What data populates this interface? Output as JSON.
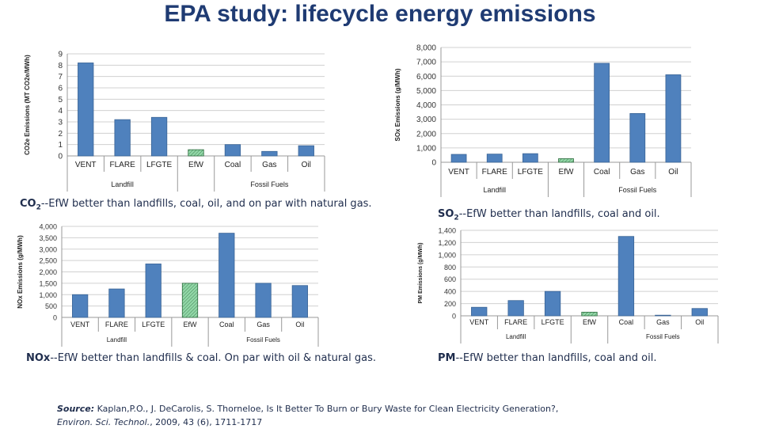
{
  "title": "EPA study: lifecycle energy emissions",
  "colors": {
    "bar": "#4f81bd",
    "efw_bar": "#92d8a8",
    "title": "#1f3b73",
    "caption": "#1f2d4d"
  },
  "captions": {
    "co2": {
      "lead": "CO",
      "sub": "2",
      "text": "--EfW better than landfills, coal, oil, and on par with natural gas."
    },
    "so2": {
      "lead": "SO",
      "sub": "2",
      "text": "--EfW better than landfills, coal and  oil."
    },
    "nox": {
      "lead": "NOx",
      "text": "--EfW better than landfills & coal. On par with oil & natural gas."
    },
    "pm": {
      "lead": "PM",
      "text": "--EfW better than landfills, coal and oil."
    }
  },
  "source": {
    "label": "Source:",
    "text": " Kaplan,P.O., J. DeCarolis, S. Thorneloe, Is It Better To Burn or Bury Waste for Clean Electricity Generation?,",
    "journal": "Environ. Sci. Technol.",
    "details": ", 2009, 43 (6), 1711-1717"
  },
  "chart_data": [
    {
      "id": "co2",
      "type": "bar",
      "ylabel": "CO2e Emissions (MT CO2e/MWh)",
      "categories": [
        "VENT",
        "FLARE",
        "LFGTE",
        "EfW",
        "Coal",
        "Gas",
        "Oil"
      ],
      "groups": [
        {
          "label": "Landfill",
          "from": 0,
          "to": 2
        },
        {
          "label": "Fossil Fuels",
          "from": 4,
          "to": 6
        }
      ],
      "values": [
        8.2,
        3.2,
        3.4,
        0.55,
        1.0,
        0.4,
        0.9
      ],
      "highlight_index": 3,
      "ylim": [
        0,
        9
      ],
      "yticks": [
        0,
        1,
        2,
        3,
        4,
        5,
        6,
        7,
        8,
        9
      ],
      "ytick_labels": [
        "0",
        "1",
        "2",
        "3",
        "4",
        "5",
        "6",
        "7",
        "8",
        "9"
      ],
      "grid": true
    },
    {
      "id": "so2",
      "type": "bar",
      "ylabel": "SOx Emissions (g/MWh)",
      "categories": [
        "VENT",
        "FLARE",
        "LFGTE",
        "EfW",
        "Coal",
        "Gas",
        "Oil"
      ],
      "groups": [
        {
          "label": "Landfill",
          "from": 0,
          "to": 2
        },
        {
          "label": "Fossil Fuels",
          "from": 4,
          "to": 6
        }
      ],
      "values": [
        550,
        570,
        600,
        250,
        6900,
        3400,
        6100
      ],
      "highlight_index": 3,
      "ylim": [
        0,
        8000
      ],
      "yticks": [
        0,
        1000,
        2000,
        3000,
        4000,
        5000,
        6000,
        7000,
        8000
      ],
      "ytick_labels": [
        "0",
        "1,000",
        "2,000",
        "3,000",
        "4,000",
        "5,000",
        "6,000",
        "7,000",
        "8,000"
      ],
      "grid": true
    },
    {
      "id": "nox",
      "type": "bar",
      "ylabel": "NOx Emissions (g/MWh)",
      "categories": [
        "VENT",
        "FLARE",
        "LFGTE",
        "EfW",
        "Coal",
        "Gas",
        "Oil"
      ],
      "groups": [
        {
          "label": "Landfill",
          "from": 0,
          "to": 2
        },
        {
          "label": "Fossil Fuels",
          "from": 4,
          "to": 6
        }
      ],
      "values": [
        1000,
        1250,
        2350,
        1500,
        3700,
        1500,
        1400
      ],
      "highlight_index": 3,
      "ylim": [
        0,
        4000
      ],
      "yticks": [
        0,
        500,
        1000,
        1500,
        2000,
        2500,
        3000,
        3500,
        4000
      ],
      "ytick_labels": [
        "0",
        "500",
        "1,000",
        "1,500",
        "2,000",
        "2,500",
        "3,000",
        "3,500",
        "4,000"
      ],
      "grid": true
    },
    {
      "id": "pm",
      "type": "bar",
      "ylabel": "PM Emissions (g/MWh)",
      "categories": [
        "VENT",
        "FLARE",
        "LFGTE",
        "EfW",
        "Coal",
        "Gas",
        "Oil"
      ],
      "groups": [
        {
          "label": "Landfill",
          "from": 0,
          "to": 2
        },
        {
          "label": "Fossil Fuels",
          "from": 4,
          "to": 6
        }
      ],
      "values": [
        140,
        250,
        400,
        60,
        1300,
        10,
        120
      ],
      "highlight_index": 3,
      "ylim": [
        0,
        1400
      ],
      "yticks": [
        0,
        200,
        400,
        600,
        800,
        1000,
        1200,
        1400
      ],
      "ytick_labels": [
        "0",
        "200",
        "400",
        "600",
        "800",
        "1,000",
        "1,200",
        "1,400"
      ],
      "grid": true
    }
  ]
}
